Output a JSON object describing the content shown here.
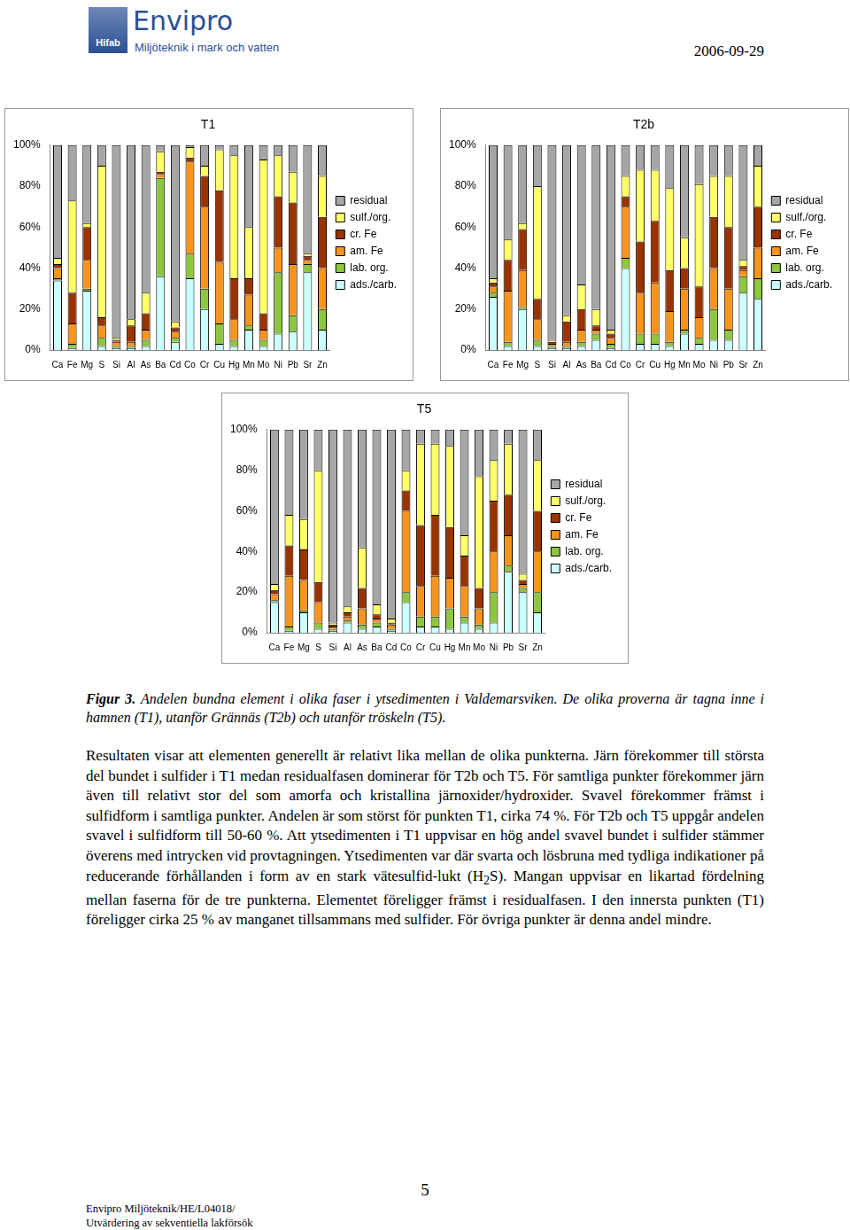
{
  "header": {
    "logo": "Envipro",
    "logo_sub": "Hifab",
    "tagline": "Miljöteknik i mark och vatten",
    "date": "2006-09-29"
  },
  "chart_data": [
    {
      "type": "bar",
      "title": "T1",
      "stacked": true,
      "grid": false,
      "legend": "right",
      "categories": [
        "Ca",
        "Fe",
        "Mg",
        "S",
        "Si",
        "Al",
        "As",
        "Ba",
        "Cd",
        "Co",
        "Cr",
        "Cu",
        "Hg",
        "Mn",
        "Mo",
        "Ni",
        "Pb",
        "Sr",
        "Zn"
      ],
      "ylim": [
        0,
        100
      ],
      "yticks": [
        {
          "value": 0,
          "label": "0%"
        },
        {
          "value": 20,
          "label": "20%"
        },
        {
          "value": 40,
          "label": "40%"
        },
        {
          "value": 60,
          "label": "60%"
        },
        {
          "value": 80,
          "label": "80%"
        },
        {
          "value": 100,
          "label": "100%"
        }
      ],
      "series": [
        {
          "name": "ads./carb.",
          "color": "#ccffff",
          "values": [
            34,
            1,
            29,
            2,
            1,
            1,
            2,
            36,
            4,
            35,
            20,
            3,
            2,
            10,
            2,
            8,
            9,
            38,
            10
          ]
        },
        {
          "name": "lab. org.",
          "color": "#8dc63f",
          "values": [
            1,
            2,
            1,
            4,
            1,
            1,
            3,
            48,
            2,
            12,
            10,
            10,
            3,
            2,
            3,
            30,
            8,
            4,
            10
          ]
        },
        {
          "name": "am. Fe",
          "color": "#f7941d",
          "values": [
            5,
            10,
            14,
            6,
            2,
            2,
            5,
            2,
            3,
            45,
            40,
            30,
            10,
            15,
            5,
            12,
            25,
            2,
            20
          ]
        },
        {
          "name": "cr. Fe",
          "color": "#993300",
          "values": [
            2,
            15,
            16,
            4,
            1,
            8,
            8,
            1,
            2,
            2,
            15,
            35,
            20,
            8,
            8,
            25,
            30,
            2,
            25
          ]
        },
        {
          "name": "sulf./org.",
          "color": "#ffff66",
          "values": [
            3,
            45,
            2,
            74,
            1,
            3,
            10,
            10,
            3,
            5,
            5,
            20,
            60,
            25,
            75,
            20,
            15,
            1,
            20
          ]
        },
        {
          "name": "residual",
          "color": "#a6a6a6",
          "values": [
            55,
            27,
            38,
            10,
            94,
            85,
            72,
            3,
            86,
            1,
            10,
            2,
            5,
            40,
            7,
            5,
            13,
            53,
            15
          ]
        }
      ]
    },
    {
      "type": "bar",
      "title": "T2b",
      "stacked": true,
      "grid": false,
      "legend": "right",
      "categories": [
        "Ca",
        "Fe",
        "Mg",
        "S",
        "Si",
        "Al",
        "As",
        "Ba",
        "Cd",
        "Co",
        "Cr",
        "Cu",
        "Hg",
        "Mn",
        "Mo",
        "Ni",
        "Pb",
        "Sr",
        "Zn"
      ],
      "ylim": [
        0,
        100
      ],
      "yticks": [
        {
          "value": 0,
          "label": "0%"
        },
        {
          "value": 20,
          "label": "20%"
        },
        {
          "value": 40,
          "label": "40%"
        },
        {
          "value": 60,
          "label": "60%"
        },
        {
          "value": 80,
          "label": "80%"
        },
        {
          "value": 100,
          "label": "100%"
        }
      ],
      "series": [
        {
          "name": "ads./carb.",
          "color": "#ccffff",
          "values": [
            26,
            2,
            20,
            2,
            1,
            1,
            2,
            5,
            1,
            40,
            3,
            3,
            2,
            8,
            3,
            5,
            5,
            28,
            25
          ]
        },
        {
          "name": "lab. org.",
          "color": "#8dc63f",
          "values": [
            2,
            2,
            1,
            3,
            1,
            1,
            2,
            3,
            2,
            5,
            5,
            5,
            2,
            2,
            3,
            15,
            5,
            8,
            10
          ]
        },
        {
          "name": "am. Fe",
          "color": "#f7941d",
          "values": [
            3,
            25,
            18,
            10,
            1,
            2,
            6,
            2,
            3,
            25,
            20,
            25,
            15,
            20,
            10,
            20,
            20,
            3,
            15
          ]
        },
        {
          "name": "cr. Fe",
          "color": "#993300",
          "values": [
            2,
            15,
            20,
            10,
            1,
            10,
            10,
            2,
            2,
            5,
            25,
            30,
            20,
            10,
            15,
            25,
            30,
            2,
            20
          ]
        },
        {
          "name": "sulf./org.",
          "color": "#ffff66",
          "values": [
            2,
            10,
            3,
            55,
            1,
            3,
            12,
            8,
            2,
            10,
            35,
            25,
            40,
            15,
            50,
            20,
            25,
            3,
            20
          ]
        },
        {
          "name": "residual",
          "color": "#a6a6a6",
          "values": [
            65,
            46,
            38,
            20,
            95,
            83,
            68,
            80,
            90,
            15,
            12,
            12,
            21,
            45,
            19,
            15,
            15,
            56,
            10
          ]
        }
      ]
    },
    {
      "type": "bar",
      "title": "T5",
      "stacked": true,
      "grid": false,
      "legend": "right",
      "categories": [
        "Ca",
        "Fe",
        "Mg",
        "S",
        "Si",
        "Al",
        "As",
        "Ba",
        "Cd",
        "Co",
        "Cr",
        "Cu",
        "Hg",
        "Mn",
        "Mo",
        "Ni",
        "Pb",
        "Sr",
        "Zn"
      ],
      "ylim": [
        0,
        100
      ],
      "yticks": [
        {
          "value": 0,
          "label": "0%"
        },
        {
          "value": 20,
          "label": "20%"
        },
        {
          "value": 40,
          "label": "40%"
        },
        {
          "value": 60,
          "label": "60%"
        },
        {
          "value": 80,
          "label": "80%"
        },
        {
          "value": 100,
          "label": "100%"
        }
      ],
      "series": [
        {
          "name": "ads./carb.",
          "color": "#ccffff",
          "values": [
            15,
            1,
            10,
            2,
            1,
            5,
            2,
            3,
            1,
            15,
            3,
            3,
            2,
            5,
            2,
            5,
            30,
            20,
            10
          ]
        },
        {
          "name": "lab. org.",
          "color": "#8dc63f",
          "values": [
            1,
            2,
            1,
            3,
            1,
            1,
            2,
            2,
            1,
            5,
            5,
            5,
            10,
            3,
            2,
            15,
            3,
            2,
            10
          ]
        },
        {
          "name": "am. Fe",
          "color": "#f7941d",
          "values": [
            3,
            25,
            15,
            10,
            1,
            2,
            8,
            2,
            2,
            40,
            15,
            20,
            15,
            15,
            8,
            20,
            15,
            2,
            20
          ]
        },
        {
          "name": "cr. Fe",
          "color": "#993300",
          "values": [
            2,
            15,
            15,
            10,
            1,
            2,
            10,
            2,
            1,
            10,
            30,
            30,
            25,
            15,
            10,
            25,
            20,
            2,
            20
          ]
        },
        {
          "name": "sulf./org.",
          "color": "#ffff66",
          "values": [
            3,
            15,
            15,
            55,
            1,
            3,
            20,
            5,
            2,
            10,
            40,
            35,
            40,
            10,
            55,
            20,
            25,
            3,
            25
          ]
        },
        {
          "name": "residual",
          "color": "#a6a6a6",
          "values": [
            76,
            42,
            44,
            20,
            95,
            87,
            58,
            86,
            93,
            20,
            7,
            7,
            8,
            52,
            23,
            15,
            7,
            71,
            15
          ]
        }
      ]
    }
  ],
  "caption": {
    "label": "Figur 3.",
    "text": "Andelen bundna element i olika faser i ytsedimenten i Valdemarsviken. De olika proverna är tagna inne i hamnen (T1), utanför Grännäs (T2b) och utanför tröskeln (T5)."
  },
  "body": {
    "before": "Resultaten visar att elementen generellt är relativt lika mellan de olika punkterna. Järn förekommer till största del bundet i sulfider i T1 medan residualfasen dominerar för T2b och T5. För samtliga punkter förekommer järn även till relativt stor del som amorfa och kristallina järnoxider/hydroxider. Svavel förekommer främst i sulfidform i samtliga punkter. Andelen är som störst för punkten T1, cirka 74 %. För T2b och T5 uppgår andelen svavel i sulfidform till 50-60 %. Att ytsedimenten i T1 uppvisar en hög andel svavel bundet i sulfider stämmer överens med intrycken vid provtagningen. Ytsedimenten var där svarta och lösbruna med tydliga indikationer på reducerande förhållanden i form av en stark vätesulfid-lukt (H",
    "sub": "2",
    "after": "S). Mangan uppvisar en likartad fördelning mellan faserna för de tre punkterna. Elementet föreligger främst i residualfasen. I den innersta punkten (T1) föreligger cirka 25 % av manganet tillsammans med sulfider. För övriga punkter är denna andel mindre."
  },
  "page_number": 5,
  "footer": [
    "Envipro Miljöteknik/HE/L04018/",
    "Utvärdering av sekventiella lakförsök"
  ]
}
